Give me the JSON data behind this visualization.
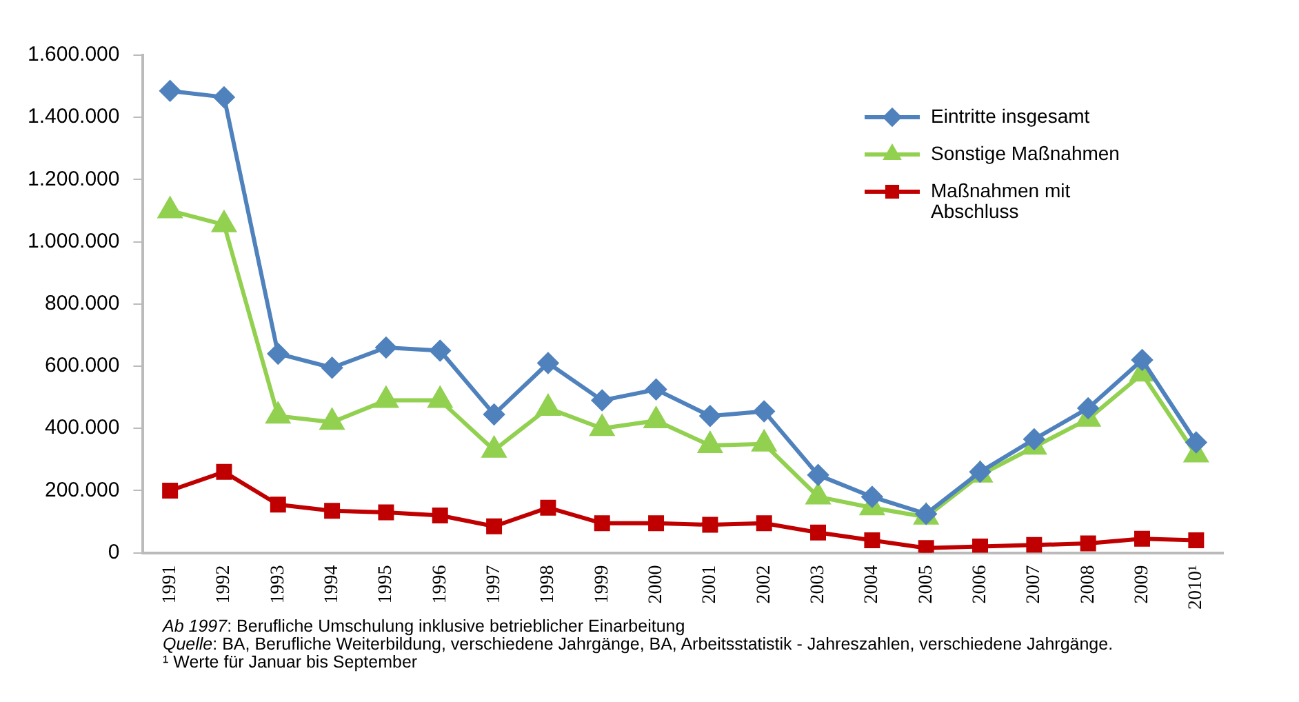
{
  "chart_data": {
    "type": "line",
    "categories": [
      "1991",
      "1992",
      "1993",
      "1994",
      "1995",
      "1996",
      "1997",
      "1998",
      "1999",
      "2000",
      "2001",
      "2002",
      "2003",
      "2004",
      "2005",
      "2006",
      "2007",
      "2008",
      "2009",
      "2010¹"
    ],
    "series": [
      {
        "name": "Eintritte insgesamt",
        "color": "#4f81bd",
        "marker": "diamond",
        "values": [
          1485000,
          1465000,
          640000,
          595000,
          660000,
          650000,
          445000,
          610000,
          490000,
          525000,
          440000,
          455000,
          250000,
          180000,
          125000,
          260000,
          365000,
          465000,
          620000,
          355000
        ]
      },
      {
        "name": "Sonstige Maßnahmen",
        "color": "#92d050",
        "marker": "triangle",
        "values": [
          1100000,
          1055000,
          440000,
          420000,
          490000,
          490000,
          330000,
          465000,
          400000,
          425000,
          345000,
          350000,
          180000,
          145000,
          115000,
          250000,
          340000,
          430000,
          575000,
          315000
        ]
      },
      {
        "name": "Maßnahmen mit Abschluss",
        "color": "#c00000",
        "marker": "square",
        "values": [
          200000,
          260000,
          155000,
          135000,
          130000,
          120000,
          85000,
          145000,
          95000,
          95000,
          90000,
          95000,
          65000,
          40000,
          15000,
          20000,
          25000,
          30000,
          45000,
          40000
        ]
      }
    ],
    "ylim": [
      0,
      1600000
    ],
    "yticks": [
      0,
      {
        "value": 200000,
        "label": "200.000"
      },
      {
        "value": 400000,
        "label": "400.000"
      },
      {
        "value": 600000,
        "label": "600.000"
      },
      {
        "value": 800000,
        "label": "800.000"
      },
      {
        "value": 1000000,
        "label": "1.000.000"
      },
      {
        "value": 1200000,
        "label": "1.200.000"
      },
      {
        "value": 1400000,
        "label": "1.400.000"
      },
      {
        "value": 1600000,
        "label": "1.600.000"
      }
    ],
    "grid": false,
    "legend": "top right",
    "line_style": "solid",
    "annotations": [
      "Ab 1997: Berufliche Umschulung inklusive betrieblicher Einarbeitung",
      "Quelle: BA, Berufliche Weiterbildung, verschiedene Jahrgänge, BA, Arbeitsstatistik - Jahreszahlen, verschiedene Jahrgänge.",
      "¹ Werte für Januar bis September"
    ]
  }
}
